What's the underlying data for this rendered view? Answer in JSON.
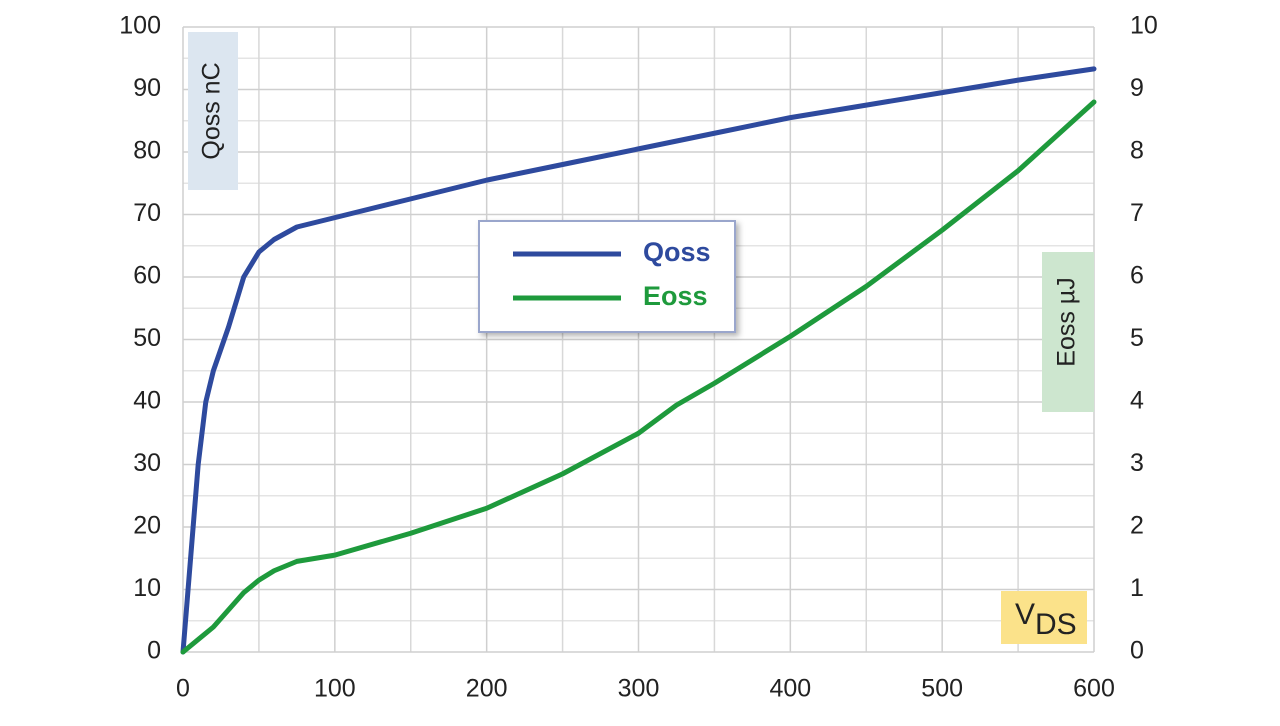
{
  "chart_data": {
    "type": "line",
    "y_label": "Qoss nC",
    "y2_label": "Eoss µJ",
    "x_label": {
      "main": "V",
      "sub": "DS"
    },
    "xlim": [
      0,
      600
    ],
    "xticks": [
      0,
      100,
      200,
      300,
      400,
      500,
      600
    ],
    "ylim": [
      0,
      100
    ],
    "yticks": [
      0,
      10,
      20,
      30,
      40,
      50,
      60,
      70,
      80,
      90,
      100
    ],
    "y2lim": [
      0,
      10
    ],
    "y2ticks": [
      0,
      1,
      2,
      3,
      4,
      5,
      6,
      7,
      8,
      9,
      10
    ],
    "grid": true,
    "legend": "center",
    "series": [
      {
        "name": "Qoss",
        "color": "#2e4a9e",
        "x": [
          0,
          5,
          10,
          15,
          20,
          30,
          40,
          50,
          60,
          75,
          100,
          150,
          200,
          250,
          300,
          350,
          400,
          450,
          500,
          550,
          600
        ],
        "values": [
          0,
          15,
          30,
          40,
          45,
          52,
          60,
          64,
          66,
          68,
          69.5,
          72.5,
          75.5,
          78,
          80.5,
          83,
          85.5,
          87.5,
          89.5,
          91.5,
          93.3
        ]
      },
      {
        "name": "Eoss",
        "color": "#1e9a3c",
        "axis": "y2",
        "x": [
          0,
          20,
          40,
          50,
          60,
          75,
          100,
          150,
          200,
          250,
          300,
          325,
          350,
          400,
          450,
          500,
          550,
          600
        ],
        "values": [
          0,
          0.4,
          0.95,
          1.15,
          1.3,
          1.45,
          1.55,
          1.9,
          2.3,
          2.85,
          3.5,
          3.95,
          4.3,
          5.05,
          5.85,
          6.75,
          7.7,
          8.8
        ]
      }
    ]
  }
}
